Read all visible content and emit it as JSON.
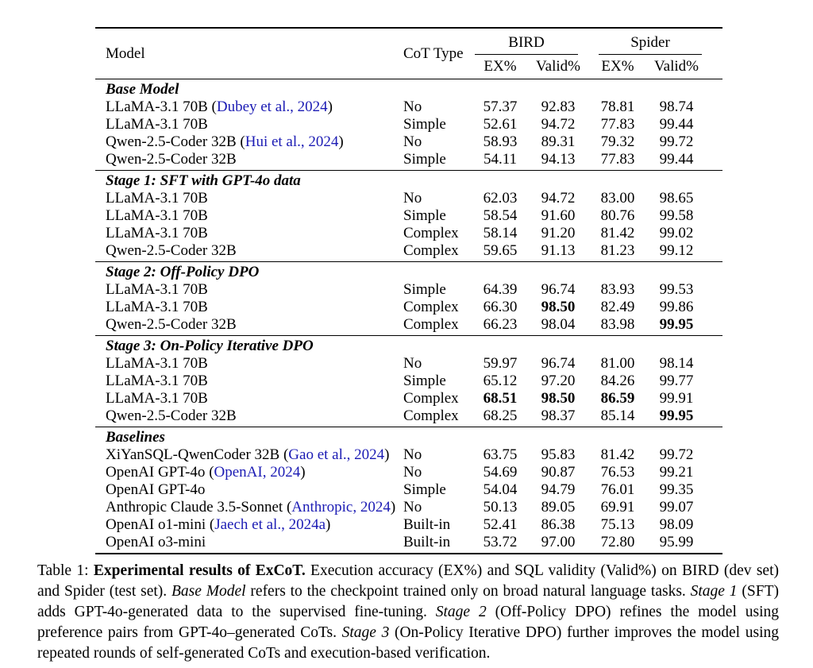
{
  "colors": {
    "link_blue": "#1b1bb4",
    "text": "#000000",
    "rule": "#000000",
    "background": "#ffffff"
  },
  "table": {
    "header": {
      "model": "Model",
      "cot_type": "CoT Type",
      "groups": [
        {
          "label": "BIRD",
          "subcolumns": [
            "EX%",
            "Valid%"
          ]
        },
        {
          "label": "Spider",
          "subcolumns": [
            "EX%",
            "Valid%"
          ]
        }
      ]
    },
    "sections": [
      {
        "title": "Base Model",
        "rows": [
          {
            "model": "LLaMA-3.1 70B",
            "citation": "Dubey et al., 2024",
            "cot": "No",
            "values": [
              "57.37",
              "92.83",
              "78.81",
              "98.74"
            ],
            "bold": []
          },
          {
            "model": "LLaMA-3.1 70B",
            "citation": null,
            "cot": "Simple",
            "values": [
              "52.61",
              "94.72",
              "77.83",
              "99.44"
            ],
            "bold": []
          },
          {
            "model": "Qwen-2.5-Coder 32B",
            "citation": "Hui et al., 2024",
            "cot": "No",
            "values": [
              "58.93",
              "89.31",
              "79.32",
              "99.72"
            ],
            "bold": []
          },
          {
            "model": "Qwen-2.5-Coder 32B",
            "citation": null,
            "cot": "Simple",
            "values": [
              "54.11",
              "94.13",
              "77.83",
              "99.44"
            ],
            "bold": []
          }
        ]
      },
      {
        "title": "Stage 1: SFT with GPT-4o data",
        "rows": [
          {
            "model": "LLaMA-3.1 70B",
            "citation": null,
            "cot": "No",
            "values": [
              "62.03",
              "94.72",
              "83.00",
              "98.65"
            ],
            "bold": []
          },
          {
            "model": "LLaMA-3.1 70B",
            "citation": null,
            "cot": "Simple",
            "values": [
              "58.54",
              "91.60",
              "80.76",
              "99.58"
            ],
            "bold": []
          },
          {
            "model": "LLaMA-3.1 70B",
            "citation": null,
            "cot": "Complex",
            "values": [
              "58.14",
              "91.20",
              "81.42",
              "99.02"
            ],
            "bold": []
          },
          {
            "model": "Qwen-2.5-Coder 32B",
            "citation": null,
            "cot": "Complex",
            "values": [
              "59.65",
              "91.13",
              "81.23",
              "99.12"
            ],
            "bold": []
          }
        ]
      },
      {
        "title": "Stage 2: Off-Policy DPO",
        "rows": [
          {
            "model": "LLaMA-3.1 70B",
            "citation": null,
            "cot": "Simple",
            "values": [
              "64.39",
              "96.74",
              "83.93",
              "99.53"
            ],
            "bold": []
          },
          {
            "model": "LLaMA-3.1 70B",
            "citation": null,
            "cot": "Complex",
            "values": [
              "66.30",
              "98.50",
              "82.49",
              "99.86"
            ],
            "bold": [
              1
            ]
          },
          {
            "model": "Qwen-2.5-Coder 32B",
            "citation": null,
            "cot": "Complex",
            "values": [
              "66.23",
              "98.04",
              "83.98",
              "99.95"
            ],
            "bold": [
              3
            ]
          }
        ]
      },
      {
        "title": "Stage 3: On-Policy Iterative DPO",
        "rows": [
          {
            "model": "LLaMA-3.1 70B",
            "citation": null,
            "cot": "No",
            "values": [
              "59.97",
              "96.74",
              "81.00",
              "98.14"
            ],
            "bold": []
          },
          {
            "model": "LLaMA-3.1 70B",
            "citation": null,
            "cot": "Simple",
            "values": [
              "65.12",
              "97.20",
              "84.26",
              "99.77"
            ],
            "bold": []
          },
          {
            "model": "LLaMA-3.1 70B",
            "citation": null,
            "cot": "Complex",
            "values": [
              "68.51",
              "98.50",
              "86.59",
              "99.91"
            ],
            "bold": [
              0,
              1,
              2
            ]
          },
          {
            "model": "Qwen-2.5-Coder 32B",
            "citation": null,
            "cot": "Complex",
            "values": [
              "68.25",
              "98.37",
              "85.14",
              "99.95"
            ],
            "bold": [
              3
            ]
          }
        ]
      },
      {
        "title": "Baselines",
        "rows": [
          {
            "model": "XiYanSQL-QwenCoder 32B",
            "citation": "Gao et al., 2024",
            "cot": "No",
            "values": [
              "63.75",
              "95.83",
              "81.42",
              "99.72"
            ],
            "bold": []
          },
          {
            "model": "OpenAI GPT-4o",
            "citation": "OpenAI, 2024",
            "cot": "No",
            "values": [
              "54.69",
              "90.87",
              "76.53",
              "99.21"
            ],
            "bold": []
          },
          {
            "model": "OpenAI GPT-4o",
            "citation": null,
            "cot": "Simple",
            "values": [
              "54.04",
              "94.79",
              "76.01",
              "99.35"
            ],
            "bold": []
          },
          {
            "model": "Anthropic Claude 3.5-Sonnet",
            "citation": "Anthropic, 2024",
            "cot": "No",
            "values": [
              "50.13",
              "89.05",
              "69.91",
              "99.07"
            ],
            "bold": []
          },
          {
            "model": "OpenAI o1-mini",
            "citation": "Jaech et al., 2024a",
            "cot": "Built-in",
            "values": [
              "52.41",
              "86.38",
              "75.13",
              "98.09"
            ],
            "bold": []
          },
          {
            "model": "OpenAI o3-mini",
            "citation": null,
            "cot": "Built-in",
            "values": [
              "53.72",
              "97.00",
              "72.80",
              "95.99"
            ],
            "bold": []
          }
        ]
      }
    ]
  },
  "caption": {
    "segments": [
      {
        "text": "Table 1: ",
        "style": "normal"
      },
      {
        "text": "Experimental results of ExCoT.",
        "style": "bold"
      },
      {
        "text": " Execution accuracy (EX%) and SQL validity (Valid%) on BIRD (dev set) and Spider (test set). ",
        "style": "normal"
      },
      {
        "text": "Base Model",
        "style": "italic"
      },
      {
        "text": " refers to the checkpoint trained only on broad natural language tasks. ",
        "style": "normal"
      },
      {
        "text": "Stage 1",
        "style": "italic"
      },
      {
        "text": " (SFT) adds GPT-4o-generated data to the supervised fine-tuning. ",
        "style": "normal"
      },
      {
        "text": "Stage 2",
        "style": "italic"
      },
      {
        "text": " (Off-Policy DPO) refines the model using preference pairs from GPT-4o–generated CoTs. ",
        "style": "normal"
      },
      {
        "text": "Stage 3",
        "style": "italic"
      },
      {
        "text": " (On-Policy Iterative DPO) further improves the model using repeated rounds of self-generated CoTs and execution-based verification.",
        "style": "normal"
      }
    ]
  }
}
